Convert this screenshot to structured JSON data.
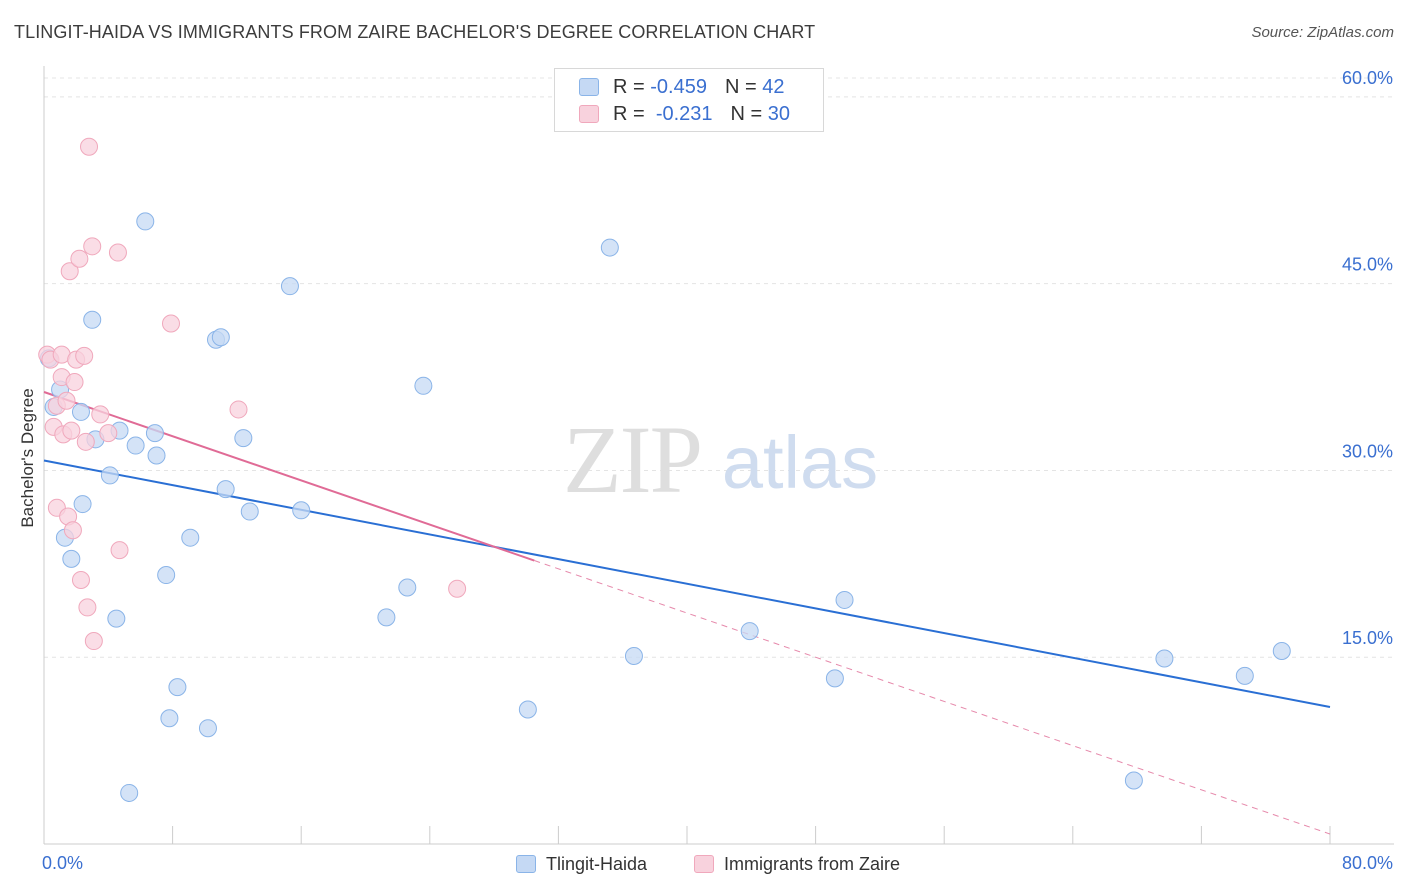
{
  "title": "TLINGIT-HAIDA VS IMMIGRANTS FROM ZAIRE BACHELOR'S DEGREE CORRELATION CHART",
  "source": "Source: ZipAtlas.com",
  "watermark": {
    "zip": "ZIP",
    "atlas": "atlas"
  },
  "legend": {
    "r_label": "R =",
    "n_label": "N =",
    "series1": {
      "r": "-0.459",
      "n": "42"
    },
    "series2": {
      "r": "-0.231",
      "n": "30"
    }
  },
  "chart_data": {
    "type": "scatter",
    "title": "TLINGIT-HAIDA VS IMMIGRANTS FROM ZAIRE BACHELOR'S DEGREE CORRELATION CHART",
    "xlabel": "",
    "ylabel": "Bachelor's Degree",
    "xlim": [
      0,
      80
    ],
    "ylim": [
      0,
      62
    ],
    "x_tick_labels": [
      "0.0%",
      "80.0%"
    ],
    "y_ticks": [
      15,
      30,
      45,
      60
    ],
    "y_tick_labels": [
      "15.0%",
      "30.0%",
      "45.0%",
      "60.0%"
    ],
    "series": [
      {
        "name": "Tlingit-Haida",
        "color": "#8ab4e8",
        "fill": "#c5d9f4",
        "line_color": "#2a6fd4",
        "trend": {
          "x": [
            0,
            80
          ],
          "y": [
            30.8,
            11.0
          ]
        },
        "points": [
          {
            "x": 0.3,
            "y": 39.0
          },
          {
            "x": 0.6,
            "y": 35.1
          },
          {
            "x": 1.0,
            "y": 36.5
          },
          {
            "x": 1.3,
            "y": 24.6
          },
          {
            "x": 1.7,
            "y": 22.9
          },
          {
            "x": 2.4,
            "y": 27.3
          },
          {
            "x": 3.0,
            "y": 42.1
          },
          {
            "x": 3.2,
            "y": 32.5
          },
          {
            "x": 2.3,
            "y": 34.7
          },
          {
            "x": 4.1,
            "y": 29.6
          },
          {
            "x": 4.5,
            "y": 18.1
          },
          {
            "x": 4.7,
            "y": 33.2
          },
          {
            "x": 5.3,
            "y": 4.1
          },
          {
            "x": 5.7,
            "y": 32.0
          },
          {
            "x": 6.3,
            "y": 50.0
          },
          {
            "x": 6.9,
            "y": 33.0
          },
          {
            "x": 7.0,
            "y": 31.2
          },
          {
            "x": 7.6,
            "y": 21.6
          },
          {
            "x": 7.8,
            "y": 10.1
          },
          {
            "x": 8.3,
            "y": 12.6
          },
          {
            "x": 9.1,
            "y": 24.6
          },
          {
            "x": 10.2,
            "y": 9.3
          },
          {
            "x": 10.7,
            "y": 40.5
          },
          {
            "x": 11.0,
            "y": 40.7
          },
          {
            "x": 11.3,
            "y": 28.5
          },
          {
            "x": 12.4,
            "y": 32.6
          },
          {
            "x": 12.8,
            "y": 26.7
          },
          {
            "x": 15.3,
            "y": 44.8
          },
          {
            "x": 16.0,
            "y": 26.8
          },
          {
            "x": 21.3,
            "y": 18.2
          },
          {
            "x": 22.6,
            "y": 20.6
          },
          {
            "x": 23.6,
            "y": 36.8
          },
          {
            "x": 30.1,
            "y": 10.8
          },
          {
            "x": 35.2,
            "y": 47.9
          },
          {
            "x": 36.7,
            "y": 15.1
          },
          {
            "x": 43.9,
            "y": 17.1
          },
          {
            "x": 49.2,
            "y": 13.3
          },
          {
            "x": 49.8,
            "y": 19.6
          },
          {
            "x": 67.8,
            "y": 5.1
          },
          {
            "x": 69.7,
            "y": 14.9
          },
          {
            "x": 74.7,
            "y": 13.5
          },
          {
            "x": 77.0,
            "y": 15.5
          }
        ]
      },
      {
        "name": "Immigrants from Zaire",
        "color": "#f0a8bc",
        "fill": "#f8d2dd",
        "line_color": "#e06b96",
        "trend": {
          "x": [
            0,
            80
          ],
          "y": [
            36.3,
            0.8
          ]
        },
        "trend_solid_end_x": 30.5,
        "points": [
          {
            "x": 0.2,
            "y": 39.3
          },
          {
            "x": 0.4,
            "y": 38.9
          },
          {
            "x": 0.6,
            "y": 33.5
          },
          {
            "x": 0.8,
            "y": 27.0
          },
          {
            "x": 0.8,
            "y": 35.2
          },
          {
            "x": 1.1,
            "y": 37.5
          },
          {
            "x": 1.1,
            "y": 39.3
          },
          {
            "x": 1.2,
            "y": 32.9
          },
          {
            "x": 1.4,
            "y": 35.6
          },
          {
            "x": 1.5,
            "y": 26.3
          },
          {
            "x": 1.6,
            "y": 46.0
          },
          {
            "x": 1.7,
            "y": 33.2
          },
          {
            "x": 1.8,
            "y": 25.2
          },
          {
            "x": 1.9,
            "y": 37.1
          },
          {
            "x": 2.0,
            "y": 38.9
          },
          {
            "x": 2.2,
            "y": 47.0
          },
          {
            "x": 2.3,
            "y": 21.2
          },
          {
            "x": 2.5,
            "y": 39.2
          },
          {
            "x": 2.6,
            "y": 32.3
          },
          {
            "x": 2.7,
            "y": 19.0
          },
          {
            "x": 2.8,
            "y": 56.0
          },
          {
            "x": 3.0,
            "y": 48.0
          },
          {
            "x": 3.1,
            "y": 16.3
          },
          {
            "x": 3.5,
            "y": 34.5
          },
          {
            "x": 4.0,
            "y": 33.0
          },
          {
            "x": 4.6,
            "y": 47.5
          },
          {
            "x": 4.7,
            "y": 23.6
          },
          {
            "x": 7.9,
            "y": 41.8
          },
          {
            "x": 12.1,
            "y": 34.9
          },
          {
            "x": 25.7,
            "y": 20.5
          }
        ]
      }
    ],
    "legend_position": "bottom-center"
  }
}
